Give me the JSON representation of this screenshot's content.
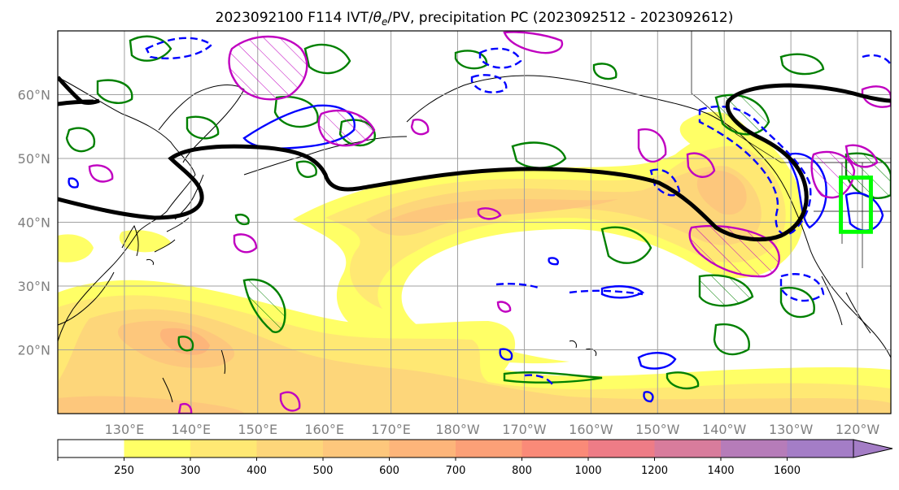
{
  "title_main": "2023092100 F114 IVT/",
  "title_theta": "θ",
  "title_sub": "e",
  "title_rest": "/PV, precipitation PC (2023092512 - 2023092612)",
  "map": {
    "lon_range": [
      120,
      245
    ],
    "lat_range": [
      10,
      70
    ],
    "lon_ticks": [
      {
        "lon": 130,
        "label": "130°E"
      },
      {
        "lon": 140,
        "label": "140°E"
      },
      {
        "lon": 150,
        "label": "150°E"
      },
      {
        "lon": 160,
        "label": "160°E"
      },
      {
        "lon": 170,
        "label": "170°E"
      },
      {
        "lon": 180,
        "label": "180°W"
      },
      {
        "lon": 190,
        "label": "170°W"
      },
      {
        "lon": 200,
        "label": "160°W"
      },
      {
        "lon": 210,
        "label": "150°W"
      },
      {
        "lon": 220,
        "label": "140°W"
      },
      {
        "lon": 230,
        "label": "130°W"
      },
      {
        "lon": 240,
        "label": "120°W"
      }
    ],
    "lat_ticks": [
      {
        "lat": 20,
        "label": "20°N"
      },
      {
        "lat": 30,
        "label": "30°N"
      },
      {
        "lat": 40,
        "label": "40°N"
      },
      {
        "lat": 50,
        "label": "50°N"
      },
      {
        "lat": 60,
        "label": "60°N"
      }
    ],
    "highlight_box": {
      "lon": [
        237.5,
        242
      ],
      "lat": [
        38.5,
        47
      ],
      "color": "#00ff00"
    },
    "colors": {
      "pv_line": "#000000",
      "theta_pos": "#008000",
      "theta_neg": "#0000ff",
      "precip": "#c000c0"
    }
  },
  "colorbar": {
    "levels": [
      {
        "label": "250",
        "color": "#ffff66"
      },
      {
        "label": "300",
        "color": "#ffe873"
      },
      {
        "label": "400",
        "color": "#fdd67a"
      },
      {
        "label": "500",
        "color": "#fdc77c"
      },
      {
        "label": "600",
        "color": "#fdb57a"
      },
      {
        "label": "700",
        "color": "#fca077"
      },
      {
        "label": "800",
        "color": "#fa8a78"
      },
      {
        "label": "1000",
        "color": "#ee7c86"
      },
      {
        "label": "1200",
        "color": "#d87c9c"
      },
      {
        "label": "1400",
        "color": "#b67cb9"
      },
      {
        "label": "1600",
        "color": "#a47dc6"
      }
    ],
    "under_color": "#ffffff",
    "over_color": "#a47dc6"
  }
}
